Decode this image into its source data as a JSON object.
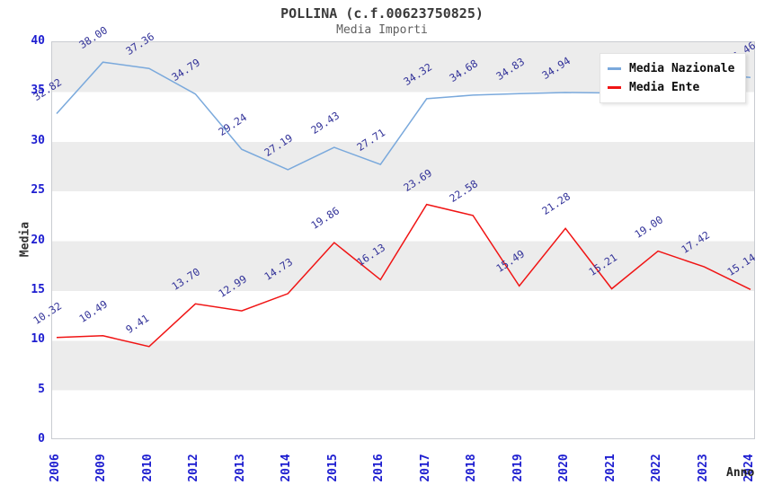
{
  "title": "POLLINA (c.f.00623750825)",
  "subtitle": "Media Importi",
  "axes": {
    "x_title": "Anno",
    "y_title": "Media",
    "y_ticks": [
      0,
      5,
      10,
      15,
      20,
      25,
      30,
      35,
      40
    ]
  },
  "legend": {
    "position": "top-right",
    "items": [
      {
        "label": "Media Nazionale",
        "color": "#7aa9dc"
      },
      {
        "label": "Media Ente",
        "color": "#f01414"
      }
    ]
  },
  "colors": {
    "band_gray": "#ececec",
    "band_white": "#ffffff",
    "tick_label_blue": "#1d1dd0",
    "data_label_navy": "#333399",
    "series_nazionale_blue": "#7aa9dc",
    "series_ente_red": "#f01414",
    "plot_border": "#c9ccd1"
  },
  "chart_data": {
    "type": "line",
    "title": "POLLINA (c.f.00623750825)",
    "subtitle": "Media Importi",
    "xlabel": "Anno",
    "ylabel": "Media",
    "ylim": [
      0,
      40
    ],
    "grid": "horizontal-bands-every-5",
    "legend_position": "top-right",
    "categories": [
      "2006",
      "2009",
      "2010",
      "2012",
      "2013",
      "2014",
      "2015",
      "2016",
      "2017",
      "2018",
      "2019",
      "2020",
      "2021",
      "2022",
      "2023",
      "2024"
    ],
    "series": [
      {
        "name": "Media Nazionale",
        "color": "#7aa9dc",
        "values": [
          32.82,
          38.0,
          37.36,
          34.79,
          29.24,
          27.19,
          29.43,
          27.71,
          34.32,
          34.68,
          34.83,
          34.94,
          34.9,
          35.2,
          36.85,
          36.46
        ],
        "labels": [
          "32.82",
          "38.00",
          "37.36",
          "34.79",
          "29.24",
          "27.19",
          "29.43",
          "27.71",
          "34.32",
          "34.68",
          "34.83",
          "34.94",
          "",
          "",
          "",
          "36.46"
        ]
      },
      {
        "name": "Media Ente",
        "color": "#f01414",
        "values": [
          10.32,
          10.49,
          9.41,
          13.7,
          12.99,
          14.73,
          19.86,
          16.13,
          23.69,
          22.58,
          15.49,
          21.28,
          15.21,
          19.0,
          17.42,
          15.14
        ],
        "labels": [
          "10.32",
          "10.49",
          "9.41",
          "13.70",
          "12.99",
          "14.73",
          "19.86",
          "16.13",
          "23.69",
          "22.58",
          "15.49",
          "21.28",
          "15.21",
          "19.00",
          "17.42",
          "15.14"
        ]
      }
    ]
  }
}
